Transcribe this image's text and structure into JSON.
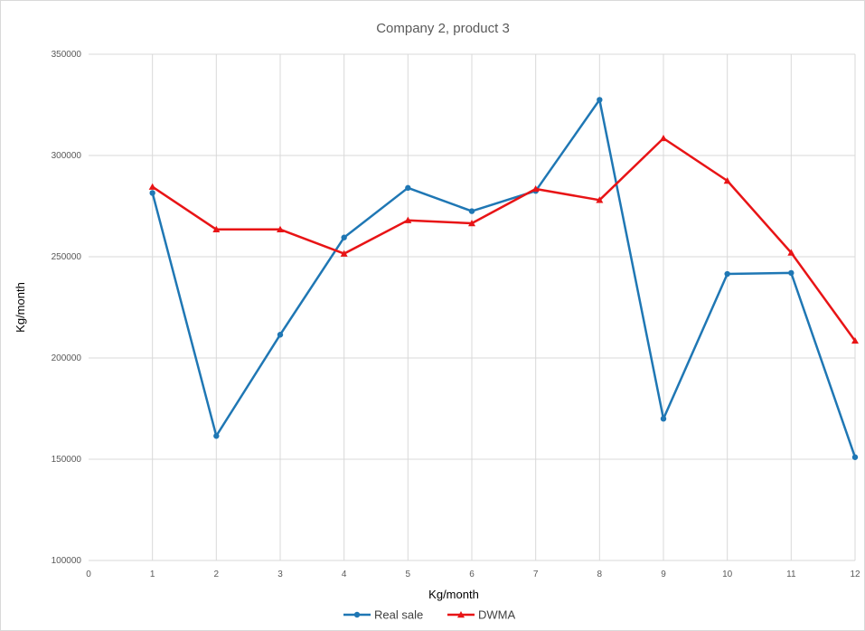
{
  "chart_data": {
    "type": "line",
    "title": "Company 2, product 3",
    "xlabel": "Kg/month",
    "ylabel": "Kg/month",
    "xlim": [
      0,
      12
    ],
    "ylim": [
      100000,
      350000
    ],
    "x_ticks": [
      0,
      1,
      2,
      3,
      4,
      5,
      6,
      7,
      8,
      9,
      10,
      11,
      12
    ],
    "y_ticks": [
      100000,
      150000,
      200000,
      250000,
      300000,
      350000
    ],
    "grid": true,
    "legend_position": "bottom",
    "series": [
      {
        "name": "Real sale",
        "color": "#1f77b4",
        "marker": "circle",
        "x": [
          1,
          2,
          3,
          4,
          5,
          6,
          7,
          8,
          9,
          10,
          11,
          12
        ],
        "y": [
          281500,
          161500,
          211500,
          259500,
          284000,
          272500,
          282500,
          327500,
          170000,
          241500,
          242000,
          151000
        ]
      },
      {
        "name": "DWMA",
        "color": "#e81416",
        "marker": "triangle",
        "x": [
          1,
          2,
          3,
          4,
          5,
          6,
          7,
          8,
          9,
          10,
          11,
          12
        ],
        "y": [
          284500,
          263500,
          263500,
          251500,
          268000,
          266500,
          283500,
          278000,
          308500,
          287500,
          252000,
          208500
        ]
      }
    ]
  }
}
